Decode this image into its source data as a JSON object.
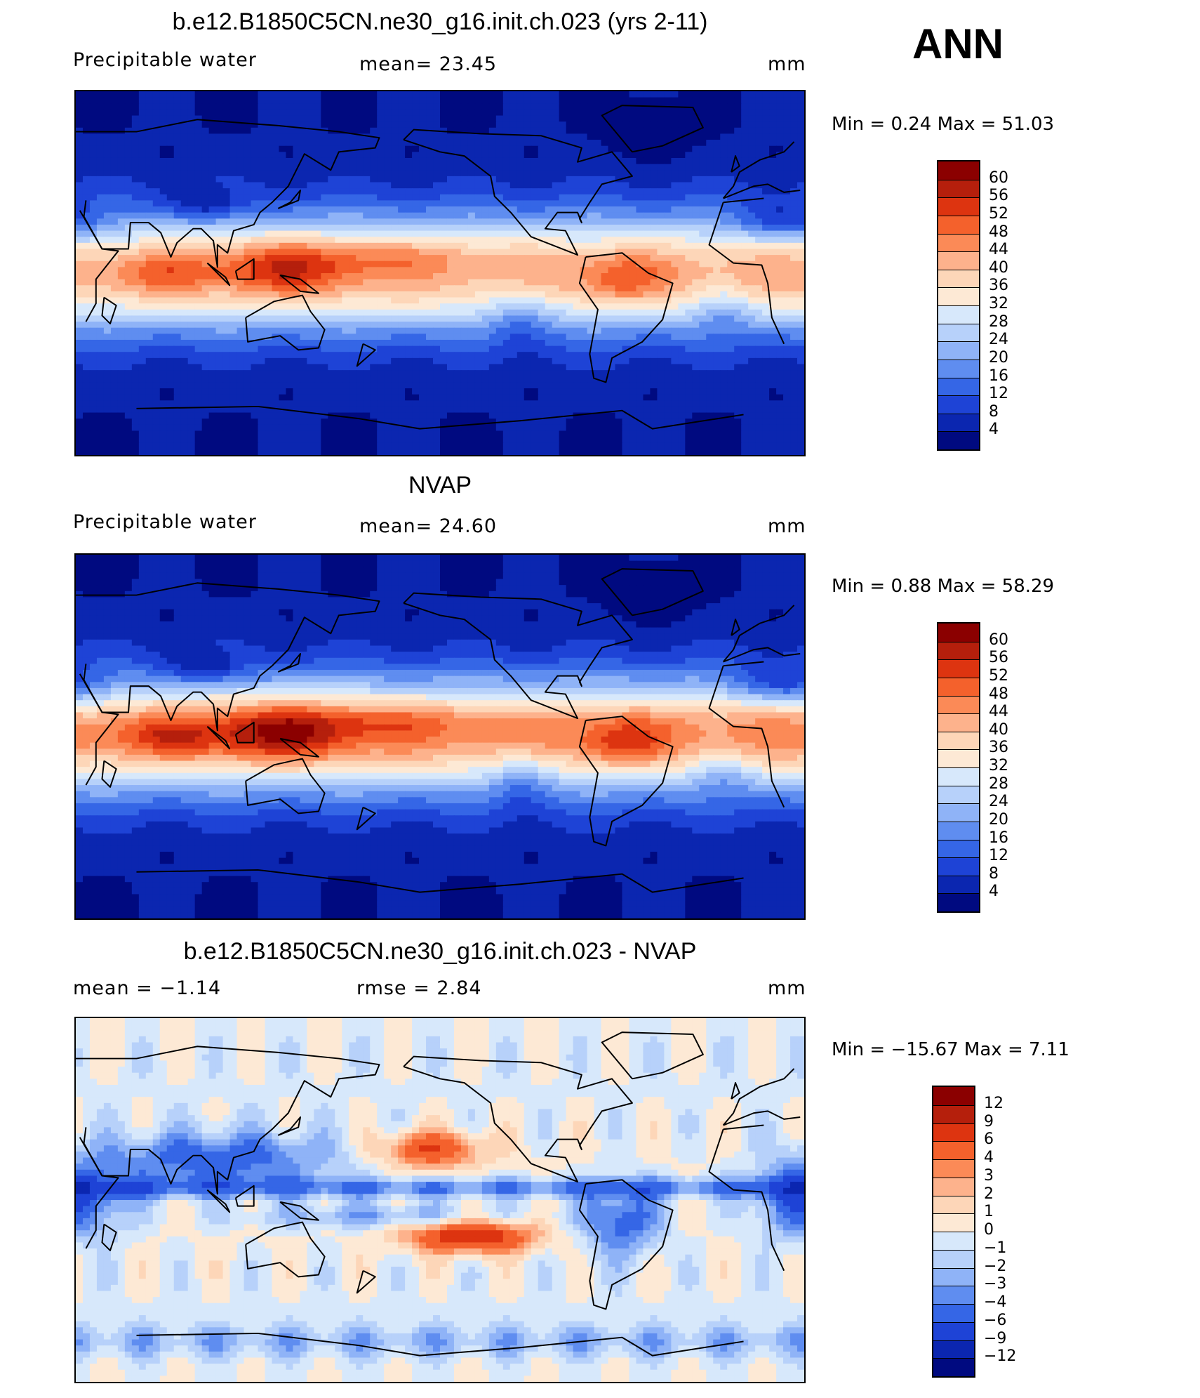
{
  "season": "ANN",
  "palette_abs": [
    "#8b0000",
    "#b51f0c",
    "#dd3410",
    "#f4612c",
    "#fb8a57",
    "#fdb28c",
    "#fdd6b8",
    "#fde9d5",
    "#d7e8fb",
    "#b7d1fa",
    "#8fb3f7",
    "#5f8df0",
    "#3566e6",
    "#1e43d6",
    "#0b26b0",
    "#000a80"
  ],
  "palette_diff": [
    "#8b0000",
    "#b51f0c",
    "#dd3410",
    "#f4612c",
    "#fb8a57",
    "#fdb28c",
    "#fdd6b8",
    "#fde9d5",
    "#d7e8fb",
    "#b7d1fa",
    "#8fb3f7",
    "#5f8df0",
    "#3566e6",
    "#1e43d6",
    "#0b26b0",
    "#000a80"
  ],
  "panels": [
    {
      "id": "model",
      "title": "b.e12.B1850C5CN.ne30_g16.init.ch.023 (yrs 2-11)",
      "left_label": "Precipitable  water",
      "center_label": "mean=   23.45",
      "units": "mm",
      "min_max": "Min  =     0.24  Max  =    51.03",
      "colorbar_labels": [
        "60",
        "56",
        "52",
        "48",
        "44",
        "40",
        "36",
        "32",
        "28",
        "24",
        "20",
        "16",
        "12",
        "8",
        "4"
      ],
      "field": "abs",
      "variant": 0
    },
    {
      "id": "obs",
      "title": "NVAP",
      "left_label": "Precipitable  water",
      "center_label": "mean=   24.60",
      "units": "mm",
      "min_max": "Min  =     0.88  Max  =    58.29",
      "colorbar_labels": [
        "60",
        "56",
        "52",
        "48",
        "44",
        "40",
        "36",
        "32",
        "28",
        "24",
        "20",
        "16",
        "12",
        "8",
        "4"
      ],
      "field": "abs",
      "variant": 1
    },
    {
      "id": "diff",
      "title": "b.e12.B1850C5CN.ne30_g16.init.ch.023 - NVAP",
      "left_label": "mean  =    −1.14",
      "center_label": "rmse  =     2.84",
      "units": "mm",
      "min_max": "Min  = −15.67  Max  =     7.11",
      "colorbar_labels": [
        "12",
        "9",
        "6",
        "4",
        "3",
        "2",
        "1",
        "0",
        "−1",
        "−2",
        "−3",
        "−4",
        "−6",
        "−9",
        "−12"
      ],
      "field": "diff",
      "variant": 2
    }
  ]
}
